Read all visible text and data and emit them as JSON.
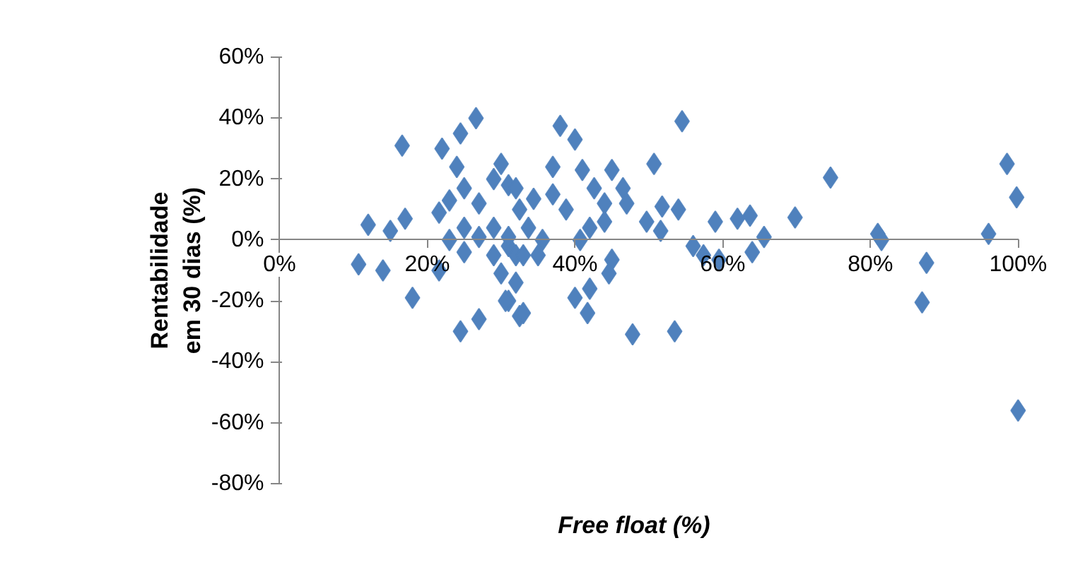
{
  "chart_data": {
    "type": "scatter",
    "xlabel": "Free float (%)",
    "ylabel": "Rentabilidade\nem 30 dias (%)",
    "marker": "diamond",
    "grid": false,
    "xlim": [
      0,
      100
    ],
    "ylim": [
      -80,
      60
    ],
    "xticks": [
      {
        "value": 0,
        "label": "0%"
      },
      {
        "value": 20,
        "label": "20%"
      },
      {
        "value": 40,
        "label": "40%"
      },
      {
        "value": 60,
        "label": "60%"
      },
      {
        "value": 80,
        "label": "80%"
      },
      {
        "value": 100,
        "label": "100%"
      }
    ],
    "yticks": [
      {
        "value": -80,
        "label": "-80%"
      },
      {
        "value": -60,
        "label": "-60%"
      },
      {
        "value": -40,
        "label": "-40%"
      },
      {
        "value": -20,
        "label": "-20%"
      },
      {
        "value": 0,
        "label": "0%"
      },
      {
        "value": 20,
        "label": "20%"
      },
      {
        "value": 40,
        "label": "40%"
      },
      {
        "value": 60,
        "label": "60%"
      }
    ],
    "series": [
      {
        "color": "#4f81bd",
        "x": [
          26.6,
          24.5,
          16.6,
          22,
          24,
          30,
          31,
          12,
          15,
          17,
          10.7,
          14,
          18,
          24.5,
          27,
          21.6,
          21.6,
          23,
          25,
          27,
          29,
          25,
          27,
          29,
          31,
          25,
          23,
          29,
          30,
          32,
          31,
          32.5,
          32.5,
          32,
          54.5,
          38,
          40,
          50.7,
          37,
          41,
          45,
          42.6,
          46.5,
          34.4,
          37,
          38.8,
          44,
          47,
          51.8,
          54,
          49.7,
          51.6,
          56,
          59,
          62,
          57.4,
          59.5,
          31,
          33.7,
          35.6,
          40.7,
          42,
          33,
          35,
          45,
          44.6,
          42,
          40,
          41.7,
          32,
          33,
          30.6,
          47.8,
          53.5,
          44,
          63.7,
          74.6,
          69.8,
          65.6,
          64,
          81,
          81.5,
          87.6,
          87,
          96,
          98.5,
          99.8,
          100
        ],
        "values": [
          40,
          35,
          31,
          30,
          24,
          25,
          18,
          5,
          3,
          7,
          -8,
          -10,
          -19,
          -30,
          -26,
          -10,
          9,
          13,
          17,
          12,
          20,
          4,
          1,
          4,
          -2,
          -4,
          0,
          -5,
          -11,
          -5,
          -20,
          -25,
          10,
          17,
          39,
          37.5,
          33,
          25,
          24,
          23,
          23,
          17,
          17,
          13.5,
          15,
          10,
          12,
          12,
          11,
          10,
          6,
          3,
          -2,
          6,
          7,
          -5,
          -6.5,
          1,
          4,
          0,
          0,
          4,
          -5,
          -5,
          -6.5,
          -11,
          -16,
          -19,
          -24,
          -14,
          -24,
          -20,
          -31,
          -30,
          6,
          8,
          20.5,
          7.4,
          1,
          -4,
          2,
          0,
          -7.5,
          -20.5,
          2,
          25,
          14,
          -56
        ]
      }
    ]
  }
}
